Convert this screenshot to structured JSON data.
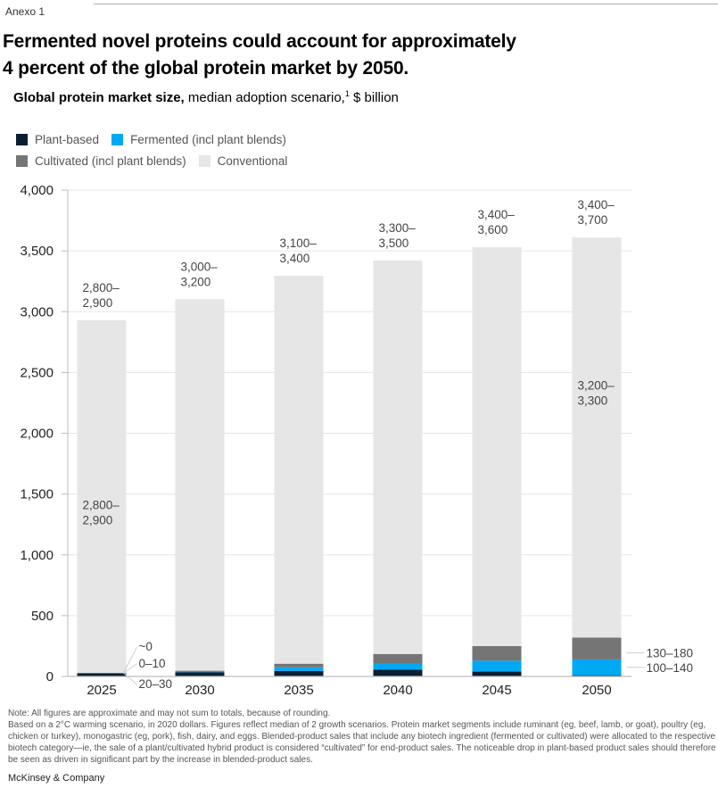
{
  "header": {
    "exhibit": "Anexo 1",
    "title_line1": "Fermented novel proteins could account for approximately",
    "title_line2": "4 percent of the global protein market by 2050.",
    "subtitle_bold": "Global protein market size,",
    "subtitle_rest": " median adoption scenario,",
    "subtitle_sup": "1",
    "subtitle_unit": " $ billion"
  },
  "colors": {
    "plant": "#0b1f33",
    "fermented": "#00a9f4",
    "cultivated": "#757575",
    "conventional": "#e6e6e6",
    "grid": "#e6e6e6",
    "axis": "#bdbdbd"
  },
  "chart_data": {
    "type": "bar",
    "stacked": true,
    "title": "Global protein market size, median adoption scenario, $ billion",
    "xlabel": "",
    "ylabel": "$ billion",
    "ylim": [
      0,
      4000
    ],
    "yticks": [
      0,
      500,
      1000,
      1500,
      2000,
      2500,
      3000,
      3500,
      4000
    ],
    "ytick_labels": [
      "0",
      "500",
      "1,000",
      "1,500",
      "2,000",
      "2,500",
      "3,000",
      "3,500",
      "4,000"
    ],
    "grid": true,
    "legend_position": "top-left",
    "categories": [
      "2025",
      "2030",
      "2035",
      "2040",
      "2045",
      "2050"
    ],
    "series": [
      {
        "name": "Plant-based",
        "key": "plant",
        "values": [
          25,
          35,
          45,
          55,
          40,
          10
        ]
      },
      {
        "name": "Fermented (incl plant blends)",
        "key": "fermented",
        "values": [
          5,
          10,
          30,
          55,
          90,
          130
        ]
      },
      {
        "name": "Cultivated (incl plant blends)",
        "key": "cultivated",
        "values": [
          0,
          2,
          30,
          75,
          120,
          180
        ]
      },
      {
        "name": "Conventional",
        "key": "conventional",
        "values": [
          2900,
          3055,
          3190,
          3235,
          3280,
          3290
        ]
      }
    ],
    "total_labels": [
      [
        "2,800–",
        "2,900"
      ],
      [
        "3,000–",
        "3,200"
      ],
      [
        "3,100–",
        "3,400"
      ],
      [
        "3,300–",
        "3,500"
      ],
      [
        "3,400–",
        "3,600"
      ],
      [
        "3,400–",
        "3,700"
      ]
    ],
    "annotations": [
      {
        "bar": "2025",
        "segment": "conventional",
        "lines": [
          "2,800–",
          "2,900"
        ]
      },
      {
        "bar": "2050",
        "segment": "conventional",
        "lines": [
          "3,200–",
          "3,300"
        ]
      },
      {
        "bar": "2025",
        "segment": "cultivated",
        "text": "~0"
      },
      {
        "bar": "2025",
        "segment": "fermented",
        "text": "0–10"
      },
      {
        "bar": "2025",
        "segment": "plant",
        "text": "20–30"
      },
      {
        "bar": "2050",
        "segment": "cultivated",
        "text": "130–180"
      },
      {
        "bar": "2050",
        "segment": "fermented",
        "text": "100–140"
      }
    ]
  },
  "footer": {
    "note": "Note: All figures are approximate and may not sum to totals, because of rounding.",
    "footnote": "Based on a 2°C warming scenario, in 2020 dollars. Figures reflect median of 2 growth scenarios. Protein market segments include ruminant (eg, beef, lamb, or goat), poultry (eg, chicken or turkey), monogastric (eg, pork), fish, dairy, and eggs. Blended-product sales that include any biotech ingredient (fermented or cultivated) were allocated to the respective biotech category—ie, the sale of a plant/cultivated hybrid product is considered “cultivated” for end-product sales. The noticeable drop in plant-based product sales should therefore be seen as driven in significant part by the increase in blended-product sales.",
    "brand": "McKinsey & Company"
  }
}
